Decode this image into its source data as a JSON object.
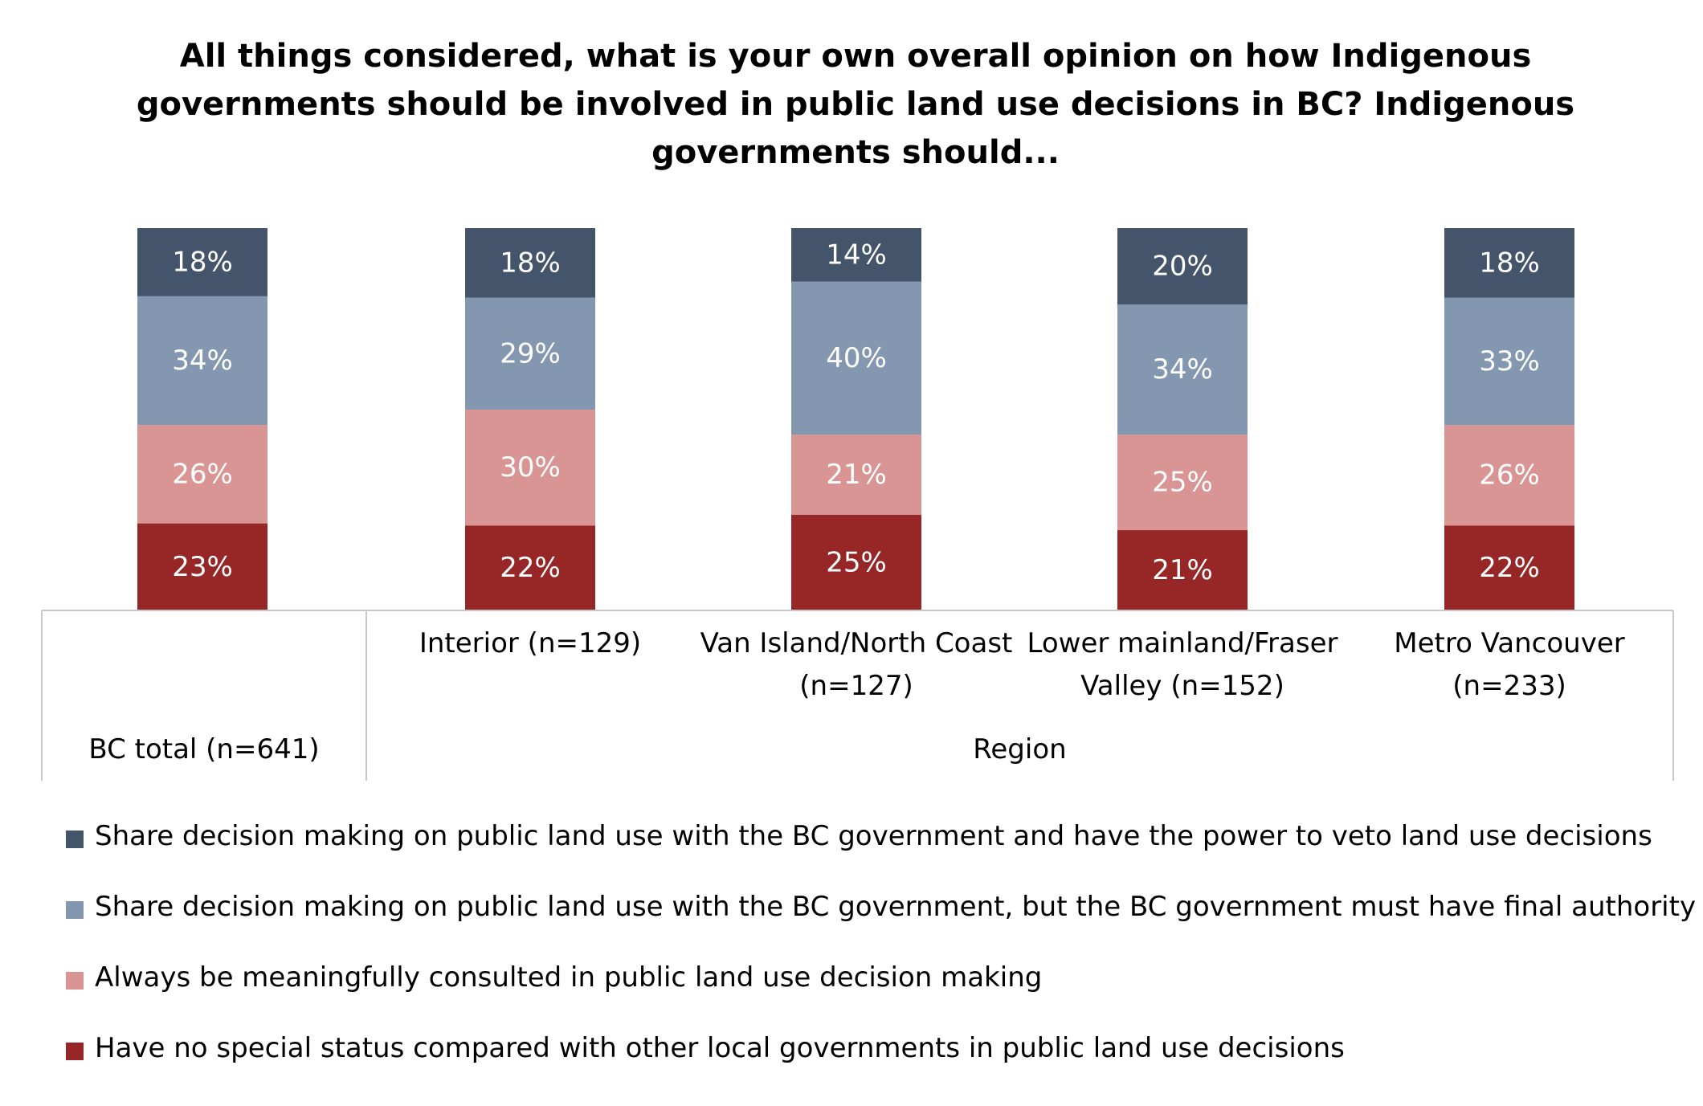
{
  "chart_data": {
    "type": "bar",
    "stacked": true,
    "title": "All things considered, what is your own overall opinion on how Indigenous governments should be involved in public land use decisions in BC? Indigenous governments should...",
    "categories": [
      "BC total (n=641)",
      "Interior (n=129)",
      "Van Island/North Coast (n=127)",
      "Lower mainland/Fraser Valley (n=152)",
      "Metro Vancouver (n=233)"
    ],
    "category_groups": [
      {
        "label": "BC total (n=641)",
        "categories": [
          0
        ]
      },
      {
        "label": "Region",
        "categories": [
          1,
          2,
          3,
          4
        ]
      }
    ],
    "series": [
      {
        "name": "Have no special status compared with other local governments in public land use decisions",
        "color": "#962726",
        "values": [
          23,
          22,
          25,
          21,
          22
        ],
        "labels": [
          "23%",
          "22%",
          "25%",
          "21%",
          "22%"
        ]
      },
      {
        "name": "Always be meaningfully consulted in public land use decision making",
        "color": "#D99594",
        "values": [
          26,
          30,
          21,
          25,
          26
        ],
        "labels": [
          "26%",
          "30%",
          "21%",
          "25%",
          "26%"
        ]
      },
      {
        "name": "Share decision making on public land use with the BC government, but the BC government must have final authority",
        "color": "#8497B0",
        "values": [
          34,
          29,
          40,
          34,
          33
        ],
        "labels": [
          "34%",
          "29%",
          "40%",
          "34%",
          "33%"
        ]
      },
      {
        "name": "Share decision making on public land use with the BC government and have the power to veto land use decisions",
        "color": "#44546A",
        "values": [
          18,
          18,
          14,
          20,
          18
        ],
        "labels": [
          "18%",
          "18%",
          "14%",
          "20%",
          "18%"
        ]
      }
    ],
    "ylim": [
      0,
      100
    ],
    "grid": false,
    "legend_position": "bottom"
  }
}
